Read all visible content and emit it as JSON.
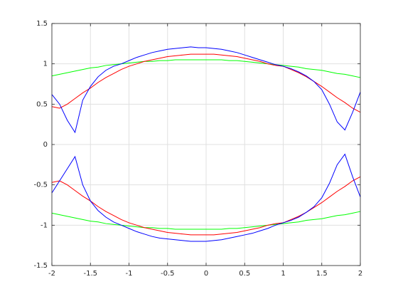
{
  "chart_data": {
    "type": "line",
    "x": [
      -2.0,
      -1.9,
      -1.8,
      -1.7,
      -1.6,
      -1.5,
      -1.4,
      -1.3,
      -1.2,
      -1.1,
      -1.0,
      -0.9,
      -0.8,
      -0.7,
      -0.6,
      -0.5,
      -0.4,
      -0.3,
      -0.2,
      -0.1,
      0,
      0.1,
      0.2,
      0.3,
      0.4,
      0.5,
      0.6,
      0.7,
      0.8,
      0.9,
      1.0,
      1.1,
      1.2,
      1.3,
      1.4,
      1.5,
      1.6,
      1.7,
      1.8,
      1.9,
      2.0
    ],
    "series": [
      {
        "color": "#00ff00",
        "values": [
          0.85,
          0.87,
          0.89,
          0.91,
          0.93,
          0.95,
          0.96,
          0.98,
          0.99,
          1.0,
          1.01,
          1.02,
          1.03,
          1.03,
          1.04,
          1.04,
          1.05,
          1.05,
          1.05,
          1.05,
          1.05,
          1.05,
          1.05,
          1.04,
          1.04,
          1.03,
          1.02,
          1.01,
          1.0,
          0.99,
          0.98,
          0.97,
          0.96,
          0.94,
          0.93,
          0.92,
          0.9,
          0.88,
          0.87,
          0.85,
          0.83
        ]
      },
      {
        "color": "#00ff00",
        "values": [
          -0.85,
          -0.87,
          -0.89,
          -0.91,
          -0.93,
          -0.95,
          -0.96,
          -0.98,
          -0.99,
          -1.0,
          -1.01,
          -1.02,
          -1.03,
          -1.03,
          -1.04,
          -1.04,
          -1.05,
          -1.05,
          -1.05,
          -1.05,
          -1.05,
          -1.05,
          -1.05,
          -1.04,
          -1.04,
          -1.03,
          -1.02,
          -1.01,
          -1.0,
          -0.99,
          -0.98,
          -0.97,
          -0.96,
          -0.94,
          -0.93,
          -0.92,
          -0.9,
          -0.88,
          -0.87,
          -0.85,
          -0.83
        ]
      },
      {
        "color": "#ff0000",
        "values": [
          0.47,
          0.45,
          0.5,
          0.57,
          0.64,
          0.7,
          0.77,
          0.83,
          0.88,
          0.93,
          0.97,
          1.0,
          1.03,
          1.05,
          1.07,
          1.09,
          1.1,
          1.11,
          1.12,
          1.12,
          1.12,
          1.12,
          1.11,
          1.1,
          1.09,
          1.07,
          1.05,
          1.03,
          1.0,
          0.98,
          0.97,
          0.93,
          0.89,
          0.84,
          0.78,
          0.72,
          0.65,
          0.58,
          0.52,
          0.45,
          0.4
        ]
      },
      {
        "color": "#ff0000",
        "values": [
          -0.47,
          -0.45,
          -0.5,
          -0.57,
          -0.64,
          -0.7,
          -0.77,
          -0.83,
          -0.88,
          -0.93,
          -0.97,
          -1.0,
          -1.03,
          -1.05,
          -1.07,
          -1.09,
          -1.1,
          -1.11,
          -1.12,
          -1.12,
          -1.12,
          -1.12,
          -1.11,
          -1.1,
          -1.09,
          -1.07,
          -1.05,
          -1.03,
          -1.0,
          -0.98,
          -0.97,
          -0.93,
          -0.89,
          -0.84,
          -0.78,
          -0.72,
          -0.65,
          -0.58,
          -0.52,
          -0.45,
          -0.4
        ]
      },
      {
        "color": "#0000ff",
        "values": [
          0.62,
          0.5,
          0.3,
          0.15,
          0.55,
          0.72,
          0.84,
          0.92,
          0.97,
          1.0,
          1.04,
          1.08,
          1.11,
          1.14,
          1.16,
          1.18,
          1.19,
          1.2,
          1.21,
          1.2,
          1.2,
          1.19,
          1.18,
          1.16,
          1.14,
          1.11,
          1.08,
          1.05,
          1.02,
          0.99,
          0.97,
          0.94,
          0.9,
          0.85,
          0.78,
          0.68,
          0.5,
          0.28,
          0.18,
          0.4,
          0.65
        ]
      },
      {
        "color": "#0000ff",
        "values": [
          -0.6,
          -0.45,
          -0.3,
          -0.15,
          -0.5,
          -0.7,
          -0.82,
          -0.9,
          -0.96,
          -1.0,
          -1.04,
          -1.08,
          -1.11,
          -1.14,
          -1.16,
          -1.17,
          -1.18,
          -1.19,
          -1.2,
          -1.2,
          -1.2,
          -1.19,
          -1.18,
          -1.16,
          -1.14,
          -1.12,
          -1.1,
          -1.07,
          -1.04,
          -1.0,
          -0.97,
          -0.94,
          -0.9,
          -0.84,
          -0.77,
          -0.66,
          -0.48,
          -0.25,
          -0.12,
          -0.4,
          -0.65
        ]
      }
    ],
    "xlim": [
      -2,
      2
    ],
    "xticks": [
      -2,
      -1.5,
      -1,
      -0.5,
      0,
      0.5,
      1,
      1.5,
      2
    ],
    "ylim": [
      -1.5,
      1.5
    ],
    "yticks": [
      -1.5,
      -1,
      -0.5,
      0,
      0.5,
      1,
      1.5
    ],
    "grid": true
  }
}
